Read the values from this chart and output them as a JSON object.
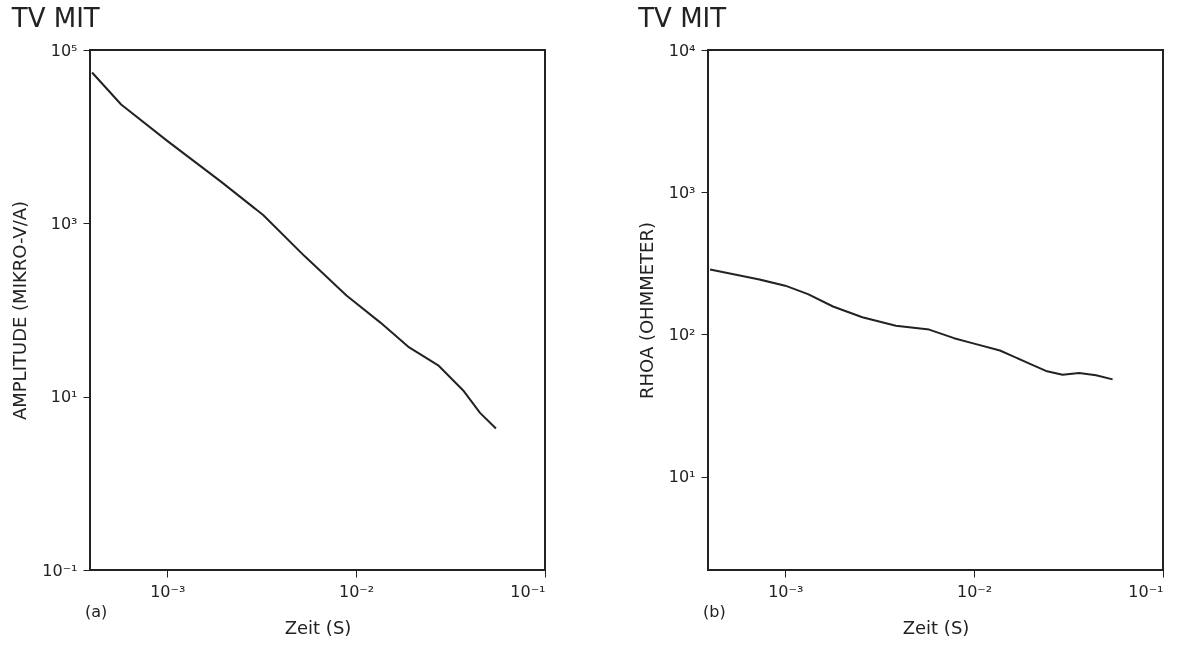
{
  "chart_data": [
    {
      "type": "line",
      "title": "TV MIT",
      "xlabel": "Zeit (S)",
      "ylabel": "AMPLITUDE (MIKRO-V/A)",
      "log": "xy",
      "grid": false,
      "marker": "none",
      "line_style": "solid",
      "xlim": [
        0.00039,
        0.1
      ],
      "ylim": [
        0.1,
        100000
      ],
      "xticks": [
        {
          "value": 0.001,
          "label": "10⁻³"
        },
        {
          "value": 0.01,
          "label": "10⁻²"
        },
        {
          "value": 0.1,
          "label": "10⁻¹"
        }
      ],
      "yticks": [
        {
          "value": 0.1,
          "label": "10⁻¹"
        },
        {
          "value": 10,
          "label": "10¹"
        },
        {
          "value": 1000,
          "label": "10³"
        },
        {
          "value": 100000,
          "label": "10⁵"
        }
      ],
      "annotations": [
        "(a)"
      ],
      "series": [
        {
          "color": "#222222",
          "x": [
            0.0004,
            0.00057,
            0.001,
            0.00194,
            0.00322,
            0.00535,
            0.00889,
            0.0134,
            0.0191,
            0.0272,
            0.0369,
            0.0453,
            0.055
          ],
          "values": [
            55000,
            23500,
            8950,
            2990,
            1245,
            416,
            147,
            72,
            37,
            23,
            11.8,
            6.5,
            4.3
          ]
        }
      ]
    },
    {
      "type": "line",
      "title": "TV MIT",
      "xlabel": "Zeit (S)",
      "ylabel": "RHOA (OHMMETER)",
      "log": "xy",
      "grid": false,
      "marker": "none",
      "line_style": "solid",
      "xlim": [
        0.00039,
        0.1
      ],
      "ylim": [
        2.2,
        10000
      ],
      "xticks": [
        {
          "value": 0.001,
          "label": "10⁻³"
        },
        {
          "value": 0.01,
          "label": "10⁻²"
        },
        {
          "value": 0.1,
          "label": "10⁻¹"
        }
      ],
      "yticks": [
        {
          "value": 10,
          "label": "10¹"
        },
        {
          "value": 100,
          "label": "10²"
        },
        {
          "value": 1000,
          "label": "10³"
        },
        {
          "value": 10000,
          "label": "10⁴"
        }
      ],
      "annotations": [
        "(b)"
      ],
      "series": [
        {
          "color": "#222222",
          "x": [
            0.0004,
            0.00072,
            0.001,
            0.00132,
            0.00179,
            0.00256,
            0.00385,
            0.00578,
            0.00783,
            0.01,
            0.0137,
            0.0195,
            0.024,
            0.0294,
            0.036,
            0.0442,
            0.0541
          ],
          "values": [
            286,
            244,
            220,
            192,
            157,
            132,
            115,
            108,
            94,
            86,
            77,
            62.5,
            55.3,
            52,
            53.5,
            51.6,
            48.2
          ]
        }
      ]
    }
  ]
}
